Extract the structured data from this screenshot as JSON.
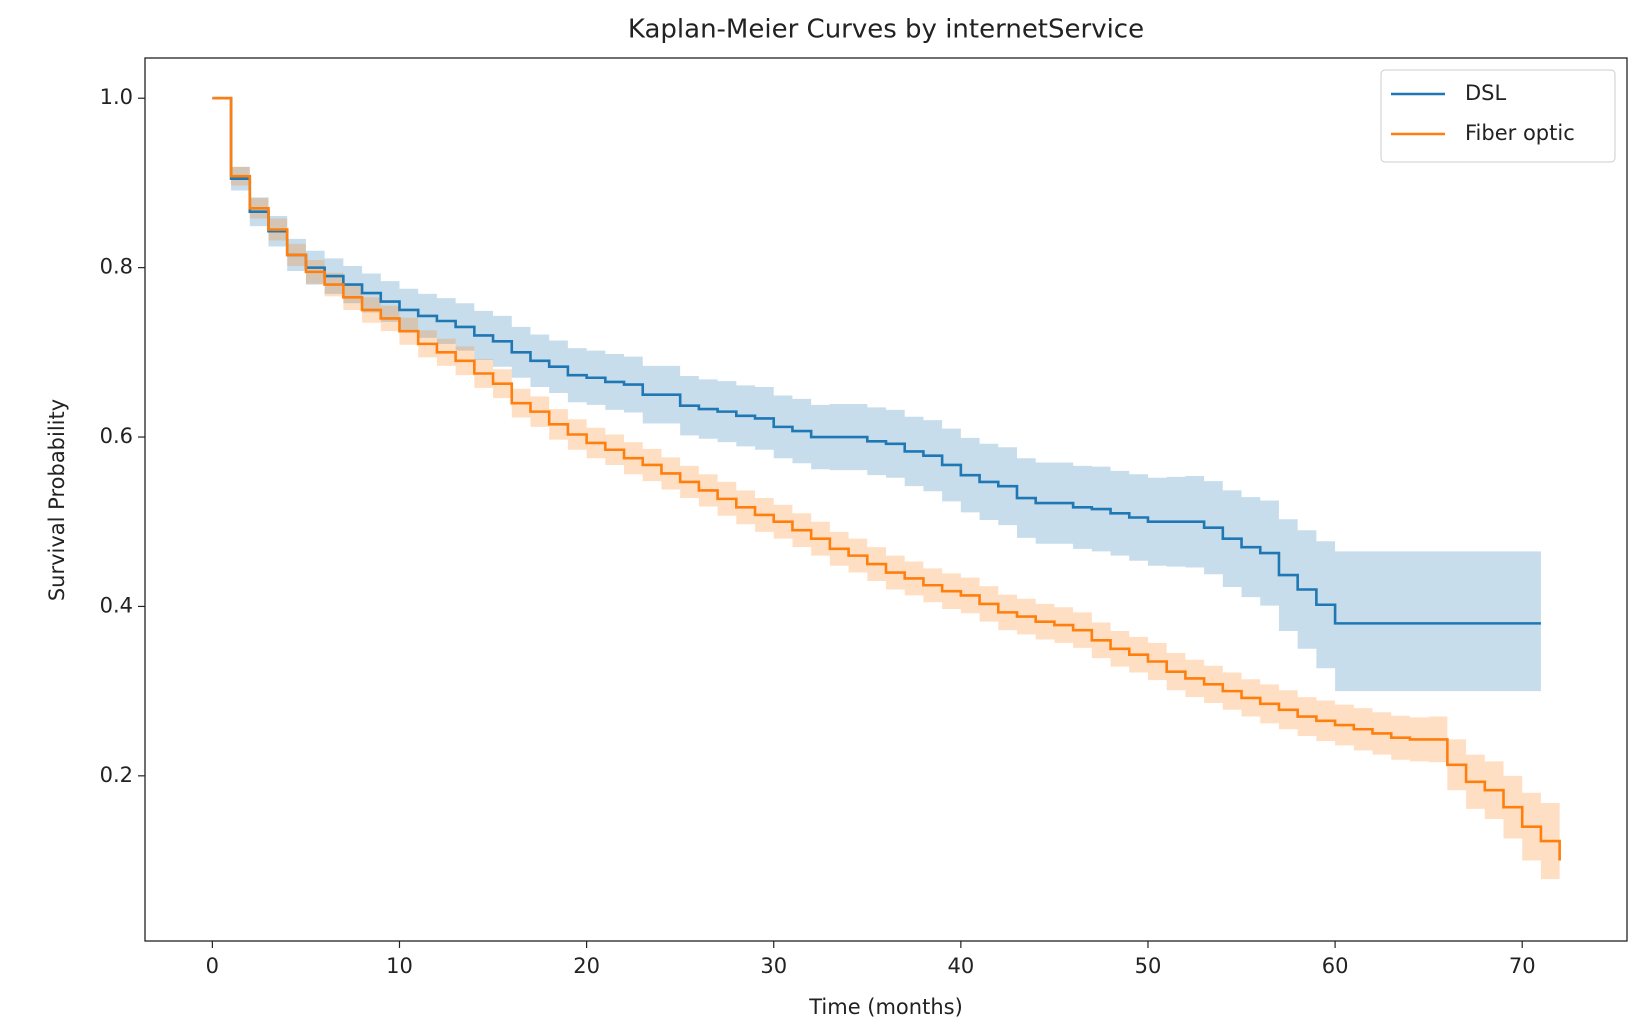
{
  "chart_data": {
    "type": "step",
    "title": "Kaplan-Meier Curves by internetService",
    "xlabel": "Time (months)",
    "ylabel": "Survival Probability",
    "xlim": [
      -3.6,
      75.6
    ],
    "ylim": [
      0.005,
      1.0475
    ],
    "xticks": [
      0,
      10,
      20,
      30,
      40,
      50,
      60,
      70
    ],
    "yticks": [
      0.2,
      0.4,
      0.6,
      0.8,
      {
        "value": 1,
        "label": "1.0"
      }
    ],
    "legend": "upper right",
    "grid": false,
    "series": [
      {
        "name": "DSL",
        "color": "#1f77b4",
        "x": [
          0,
          1,
          2,
          3,
          4,
          5,
          6,
          7,
          8,
          9,
          10,
          11,
          12,
          13,
          14,
          15,
          16,
          17,
          18,
          19,
          20,
          21,
          22,
          23,
          24,
          25,
          26,
          27,
          28,
          29,
          30,
          31,
          32,
          33,
          34,
          35,
          36,
          37,
          38,
          39,
          40,
          41,
          42,
          43,
          44,
          45,
          46,
          47,
          48,
          49,
          50,
          51,
          52,
          53,
          54,
          55,
          56,
          57,
          58,
          59,
          60,
          61,
          62,
          63,
          64,
          65,
          66,
          67,
          68,
          69,
          70,
          71
        ],
        "values": [
          1.0,
          0.905,
          0.866,
          0.843,
          0.815,
          0.8,
          0.79,
          0.78,
          0.77,
          0.76,
          0.75,
          0.743,
          0.737,
          0.73,
          0.72,
          0.713,
          0.7,
          0.69,
          0.683,
          0.673,
          0.67,
          0.665,
          0.662,
          0.65,
          0.65,
          0.637,
          0.633,
          0.63,
          0.625,
          0.622,
          0.612,
          0.607,
          0.6,
          0.6,
          0.6,
          0.595,
          0.592,
          0.583,
          0.578,
          0.567,
          0.555,
          0.547,
          0.542,
          0.528,
          0.522,
          0.522,
          0.517,
          0.515,
          0.51,
          0.505,
          0.5,
          0.5,
          0.5,
          0.493,
          0.48,
          0.47,
          0.463,
          0.437,
          0.42,
          0.402,
          0.38,
          0.38,
          0.38,
          0.38,
          0.38,
          0.38,
          0.38,
          0.38,
          0.38,
          0.38,
          0.38,
          0.38
        ],
        "ci_lower": [
          1,
          0.891,
          0.849,
          0.825,
          0.796,
          0.78,
          0.769,
          0.758,
          0.747,
          0.736,
          0.725,
          0.717,
          0.71,
          0.702,
          0.691,
          0.683,
          0.67,
          0.659,
          0.652,
          0.641,
          0.638,
          0.632,
          0.629,
          0.616,
          0.616,
          0.602,
          0.598,
          0.594,
          0.589,
          0.585,
          0.575,
          0.569,
          0.562,
          0.561,
          0.561,
          0.555,
          0.552,
          0.542,
          0.536,
          0.524,
          0.511,
          0.502,
          0.496,
          0.481,
          0.474,
          0.474,
          0.468,
          0.465,
          0.46,
          0.454,
          0.448,
          0.447,
          0.446,
          0.438,
          0.423,
          0.411,
          0.401,
          0.371,
          0.35,
          0.327,
          0.3,
          0.3,
          0.3,
          0.3,
          0.3,
          0.3,
          0.3,
          0.3,
          0.3,
          0.3,
          0.3,
          0.3
        ],
        "ci_upper": [
          1,
          0.919,
          0.883,
          0.861,
          0.834,
          0.82,
          0.811,
          0.802,
          0.793,
          0.784,
          0.775,
          0.769,
          0.764,
          0.758,
          0.749,
          0.743,
          0.73,
          0.721,
          0.714,
          0.705,
          0.702,
          0.698,
          0.695,
          0.684,
          0.684,
          0.672,
          0.668,
          0.666,
          0.661,
          0.659,
          0.649,
          0.645,
          0.638,
          0.639,
          0.639,
          0.635,
          0.632,
          0.624,
          0.62,
          0.61,
          0.599,
          0.592,
          0.588,
          0.575,
          0.57,
          0.57,
          0.566,
          0.565,
          0.56,
          0.556,
          0.552,
          0.553,
          0.554,
          0.548,
          0.537,
          0.529,
          0.525,
          0.503,
          0.49,
          0.477,
          0.465,
          0.465,
          0.465,
          0.465,
          0.465,
          0.465,
          0.465,
          0.465,
          0.465,
          0.465,
          0.465,
          0.465
        ]
      },
      {
        "name": "Fiber optic",
        "color": "#ff7f0e",
        "x": [
          0,
          1,
          2,
          3,
          4,
          5,
          6,
          7,
          8,
          9,
          10,
          11,
          12,
          13,
          14,
          15,
          16,
          17,
          18,
          19,
          20,
          21,
          22,
          23,
          24,
          25,
          26,
          27,
          28,
          29,
          30,
          31,
          32,
          33,
          34,
          35,
          36,
          37,
          38,
          39,
          40,
          41,
          42,
          43,
          44,
          45,
          46,
          47,
          48,
          49,
          50,
          51,
          52,
          53,
          54,
          55,
          56,
          57,
          58,
          59,
          60,
          61,
          62,
          63,
          64,
          65,
          66,
          67,
          68,
          69,
          70,
          71,
          72
        ],
        "values": [
          1.0,
          0.908,
          0.87,
          0.845,
          0.815,
          0.795,
          0.78,
          0.765,
          0.75,
          0.74,
          0.725,
          0.71,
          0.7,
          0.69,
          0.675,
          0.663,
          0.64,
          0.63,
          0.615,
          0.603,
          0.593,
          0.585,
          0.575,
          0.567,
          0.557,
          0.547,
          0.537,
          0.527,
          0.517,
          0.508,
          0.5,
          0.49,
          0.48,
          0.468,
          0.46,
          0.45,
          0.44,
          0.433,
          0.425,
          0.418,
          0.413,
          0.403,
          0.393,
          0.388,
          0.382,
          0.378,
          0.372,
          0.36,
          0.35,
          0.343,
          0.335,
          0.323,
          0.315,
          0.308,
          0.3,
          0.292,
          0.285,
          0.278,
          0.27,
          0.265,
          0.26,
          0.255,
          0.25,
          0.245,
          0.243,
          0.243,
          0.213,
          0.193,
          0.183,
          0.163,
          0.14,
          0.123,
          0.1
        ],
        "ci_lower": [
          1,
          0.897,
          0.858,
          0.832,
          0.802,
          0.781,
          0.766,
          0.75,
          0.735,
          0.725,
          0.709,
          0.694,
          0.684,
          0.673,
          0.658,
          0.646,
          0.623,
          0.612,
          0.597,
          0.585,
          0.575,
          0.567,
          0.556,
          0.548,
          0.538,
          0.528,
          0.518,
          0.507,
          0.497,
          0.488,
          0.48,
          0.47,
          0.46,
          0.448,
          0.44,
          0.43,
          0.42,
          0.413,
          0.405,
          0.397,
          0.392,
          0.382,
          0.372,
          0.367,
          0.361,
          0.357,
          0.351,
          0.339,
          0.329,
          0.322,
          0.313,
          0.301,
          0.293,
          0.286,
          0.278,
          0.27,
          0.262,
          0.255,
          0.247,
          0.241,
          0.236,
          0.23,
          0.225,
          0.219,
          0.217,
          0.216,
          0.183,
          0.161,
          0.149,
          0.126,
          0.1,
          0.078,
          0.055
        ],
        "ci_upper": [
          1,
          0.919,
          0.882,
          0.858,
          0.828,
          0.809,
          0.794,
          0.78,
          0.765,
          0.755,
          0.741,
          0.726,
          0.716,
          0.707,
          0.692,
          0.68,
          0.657,
          0.648,
          0.633,
          0.621,
          0.611,
          0.603,
          0.594,
          0.586,
          0.576,
          0.566,
          0.556,
          0.547,
          0.537,
          0.528,
          0.52,
          0.51,
          0.5,
          0.488,
          0.48,
          0.47,
          0.46,
          0.453,
          0.445,
          0.439,
          0.434,
          0.424,
          0.414,
          0.409,
          0.403,
          0.399,
          0.393,
          0.381,
          0.371,
          0.364,
          0.357,
          0.345,
          0.337,
          0.33,
          0.322,
          0.314,
          0.308,
          0.301,
          0.293,
          0.289,
          0.284,
          0.28,
          0.275,
          0.271,
          0.269,
          0.27,
          0.243,
          0.225,
          0.217,
          0.2,
          0.18,
          0.168,
          0.163
        ]
      }
    ]
  }
}
